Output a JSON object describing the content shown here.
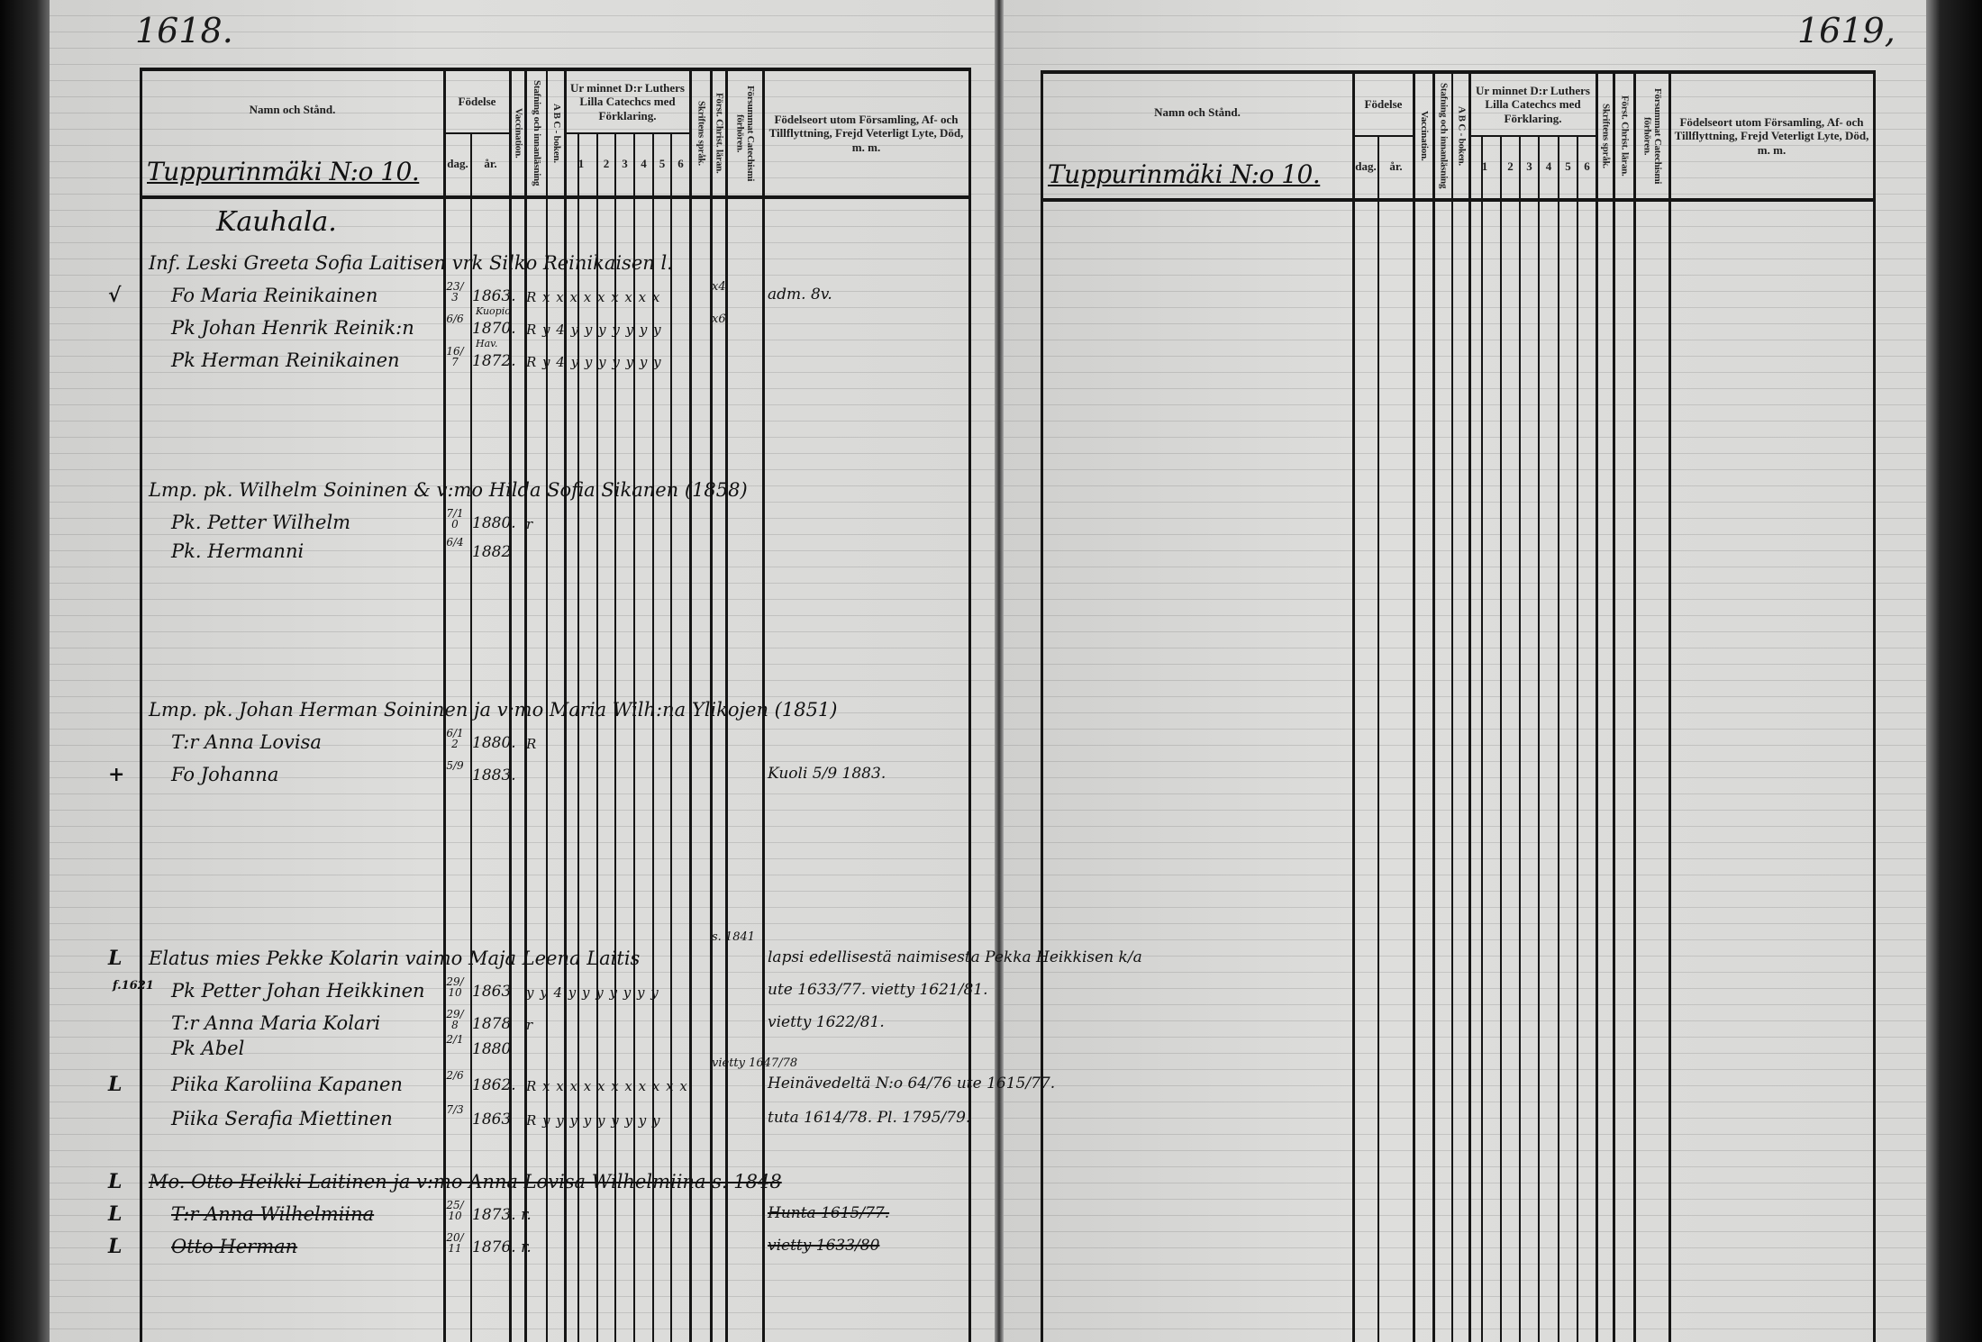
{
  "header": {
    "name": "Namn och Stånd.",
    "birth": "Födelse",
    "day": "dag.",
    "year": "år.",
    "vaccination": "Vaccination.",
    "spelling": "Stafning och innanläsning",
    "abc": "A B C - boken.",
    "catechism": "Ur minnet D:r Luthers Lilla Catechcs med Förklaring.",
    "cat_cols": [
      "1",
      "2",
      "3",
      "4",
      "5",
      "6"
    ],
    "script": "Skriftens språk.",
    "christ": "Först. Christ. läran.",
    "missed": "Försummat Catechismi förhören.",
    "birthplace": "Födelseort utom Församling, Af- och Tillflyttning, Frejd Veterligt Lyte, Död, m. m."
  },
  "left_page": {
    "page_number": "1618.",
    "section_title": "Tuppurinmäki N:o 10.",
    "entries": [
      {
        "line": "Kauhala."
      },
      {
        "line": "Inf. Leski Greeta Sofia Laitisen vrk Silko Reinikaisen l."
      },
      {
        "margin": "√",
        "name": "Fo Maria Reinikainen",
        "day": "23/3",
        "year": "1863.",
        "marks": "R x x x x x x x x x",
        "col_note": "x4",
        "note": "adm. 8v."
      },
      {
        "name": "Pk Johan Henrik Reinik:n",
        "day": "6/6",
        "year": "1870.",
        "year_note": "Kuopio",
        "marks": "R y 4 y y y y y y y",
        "col_note": "x6"
      },
      {
        "name": "Pk Herman Reinikainen",
        "day": "16/7",
        "year": "1872.",
        "year_note": "Hav.",
        "marks": "R y 4 y y y y y y y"
      },
      {
        "line": "Lmp. pk. Wilhelm Soininen & v:mo Hilda Sofia Sikanen (1858)"
      },
      {
        "name": "Pk. Petter Wilhelm",
        "day": "7/10",
        "year": "1880.",
        "marks": "r"
      },
      {
        "name": "Pk. Hermanni",
        "day": "6/4",
        "year": "1882"
      },
      {
        "line": "Lmp. pk. Johan Herman Soininen ja v:mo Maria Wilh:na Ylikojen (1851)"
      },
      {
        "name": "T:r Anna Lovisa",
        "day": "6/12",
        "year": "1880.",
        "marks": "R"
      },
      {
        "margin": "+",
        "name": "Fo Johanna",
        "day": "5/9",
        "year": "1883.",
        "note": "Kuoli 5/9 1883."
      },
      {
        "margin": "L",
        "line": "Elatus mies Pekke Kolarin vaimo Maja Leena Laitis",
        "col_note": "s. 1841",
        "note": "lapsi edellisestä naimisesta Pekka Heikkisen k/a"
      },
      {
        "margin": "f.1621",
        "name": "Pk Petter Johan Heikkinen",
        "day": "29/10",
        "year": "1863",
        "marks": "y y 4 y y y y y y y",
        "note": "ute 1633/77. vietty 1621/81."
      },
      {
        "name": "T:r Anna Maria Kolari",
        "day": "29/8",
        "year": "1878",
        "marks": "r",
        "note": "vietty 1622/81."
      },
      {
        "name": "Pk Abel",
        "day": "2/1",
        "year": "1880"
      },
      {
        "margin": "L",
        "name": "Piika Karoliina Kapanen",
        "day": "2/6",
        "year": "1862.",
        "marks": "R x x x x x x x x x x x",
        "col_note": "vietty 1647/78",
        "note": "Heinävedeltä N:o 64/76 ute 1615/77."
      },
      {
        "name": "Piika Serafia Miettinen",
        "day": "7/3",
        "year": "1863",
        "marks": "R y y y y y y y y y",
        "note": "tuta 1614/78. Pl. 1795/79."
      },
      {
        "margin": "L",
        "line": "Mo. Otto Heikki Laitinen ja v:mo Anna Lovisa Wilhelmiina s. 1848",
        "struck": true
      },
      {
        "margin": "L",
        "name": "T:r Anna Wilhelmiina",
        "day": "25/10",
        "year": "1873. r.",
        "note": "Hunta 1615/77.",
        "struck": true
      },
      {
        "margin": "L",
        "name": "Otto Herman",
        "day": "20/11",
        "year": "1876. r.",
        "note": "vietty 1633/80",
        "struck": true
      }
    ]
  },
  "right_page": {
    "page_number": "1619,",
    "section_title": "Tuppurinmäki N:o 10."
  }
}
